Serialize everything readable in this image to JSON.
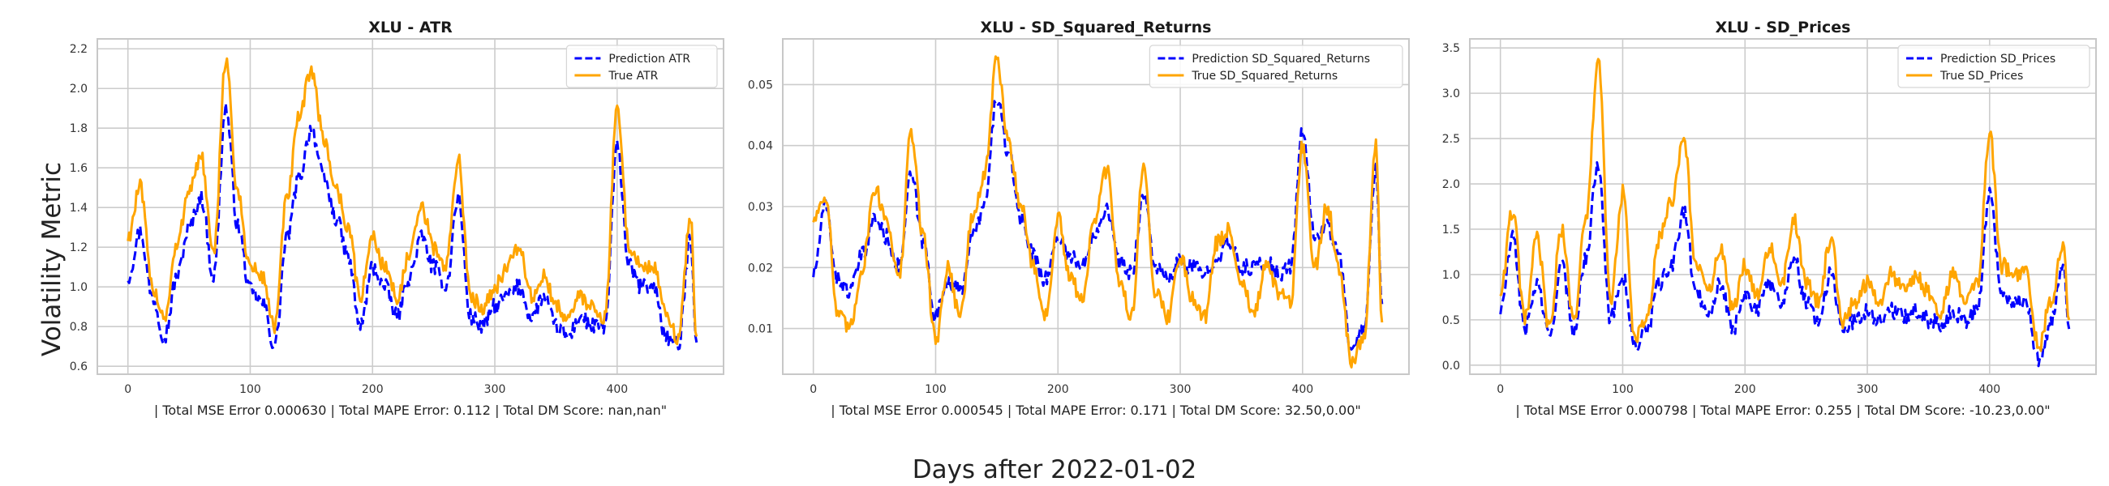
{
  "figure": {
    "ylabel": "Volatility Metric",
    "xlabel": "Days after 2022-01-02"
  },
  "colors": {
    "prediction": "#0000ff",
    "true": "#ffa500",
    "grid": "#cccccc",
    "frame": "#c8c8c8"
  },
  "chart_data": [
    {
      "type": "line",
      "title": "XLU - ATR",
      "error_text": "| Total MSE Error 0.000630 | Total MAPE Error: 0.112 | Total DM Score: nan,nan\"",
      "xlim": [
        -25,
        487
      ],
      "ylim": [
        0.56,
        2.25
      ],
      "xticks": [
        0,
        100,
        200,
        300,
        400
      ],
      "xtick_labels": [
        "0",
        "100",
        "200",
        "300",
        "400"
      ],
      "yticks": [
        0.6,
        0.8,
        1.0,
        1.2,
        1.4,
        1.6,
        1.8,
        2.0,
        2.2
      ],
      "ytick_labels": [
        "0.6",
        "0.8",
        "1.0",
        "1.2",
        "1.4",
        "1.6",
        "1.8",
        "2.0",
        "2.2"
      ],
      "legend_position": "top-right",
      "grid": true,
      "x": [
        0,
        10,
        20,
        30,
        40,
        50,
        60,
        70,
        80,
        90,
        100,
        110,
        120,
        130,
        140,
        150,
        160,
        170,
        180,
        190,
        200,
        210,
        220,
        230,
        240,
        250,
        260,
        270,
        280,
        290,
        300,
        310,
        320,
        330,
        340,
        350,
        360,
        370,
        380,
        390,
        400,
        410,
        420,
        430,
        440,
        450,
        460,
        465
      ],
      "series": [
        {
          "name": "Prediction ATR",
          "style": "dashed",
          "values": [
            1.05,
            1.28,
            0.95,
            0.75,
            1.05,
            1.3,
            1.45,
            1.05,
            1.9,
            1.3,
            0.98,
            0.92,
            0.7,
            1.25,
            1.55,
            1.8,
            1.55,
            1.35,
            1.15,
            0.8,
            1.1,
            1.0,
            0.85,
            1.05,
            1.25,
            1.1,
            1.0,
            1.45,
            0.85,
            0.8,
            0.9,
            0.95,
            1.0,
            0.85,
            0.95,
            0.8,
            0.75,
            0.85,
            0.8,
            0.8,
            1.7,
            1.1,
            1.0,
            1.0,
            0.75,
            0.7,
            1.25,
            0.72
          ]
        },
        {
          "name": "True ATR",
          "style": "solid",
          "values": [
            1.25,
            1.5,
            1.0,
            0.85,
            1.2,
            1.5,
            1.65,
            1.15,
            2.15,
            1.45,
            1.1,
            1.05,
            0.8,
            1.45,
            1.85,
            2.1,
            1.75,
            1.5,
            1.3,
            0.95,
            1.25,
            1.1,
            0.95,
            1.15,
            1.4,
            1.2,
            1.1,
            1.65,
            0.95,
            0.9,
            1.0,
            1.1,
            1.2,
            0.95,
            1.05,
            0.9,
            0.85,
            0.95,
            0.9,
            0.85,
            1.9,
            1.2,
            1.1,
            1.1,
            0.85,
            0.75,
            1.35,
            0.75
          ]
        }
      ]
    },
    {
      "type": "line",
      "title": "XLU - SD_Squared_Returns",
      "error_text": "| Total MSE Error 0.000545 | Total MAPE Error: 0.171 | Total DM Score: 32.50,0.00\"",
      "xlim": [
        -25,
        487
      ],
      "ylim": [
        0.0025,
        0.0575
      ],
      "xticks": [
        0,
        100,
        200,
        300,
        400
      ],
      "xtick_labels": [
        "0",
        "100",
        "200",
        "300",
        "400"
      ],
      "yticks": [
        0.01,
        0.02,
        0.03,
        0.04,
        0.05
      ],
      "ytick_labels": [
        "0.01",
        "0.02",
        "0.03",
        "0.04",
        "0.05"
      ],
      "legend_position": "top-right",
      "grid": true,
      "x": [
        0,
        10,
        20,
        30,
        40,
        50,
        60,
        70,
        80,
        90,
        100,
        110,
        120,
        130,
        140,
        150,
        160,
        170,
        180,
        190,
        200,
        210,
        220,
        230,
        240,
        250,
        260,
        270,
        280,
        290,
        300,
        310,
        320,
        330,
        340,
        350,
        360,
        370,
        380,
        390,
        400,
        410,
        420,
        430,
        440,
        450,
        460,
        465
      ],
      "series": [
        {
          "name": "Prediction SD_Squared_Returns",
          "style": "dashed",
          "values": [
            0.019,
            0.03,
            0.018,
            0.016,
            0.022,
            0.028,
            0.025,
            0.02,
            0.035,
            0.024,
            0.012,
            0.018,
            0.016,
            0.025,
            0.03,
            0.048,
            0.038,
            0.028,
            0.022,
            0.018,
            0.025,
            0.022,
            0.02,
            0.026,
            0.03,
            0.021,
            0.019,
            0.032,
            0.02,
            0.018,
            0.021,
            0.02,
            0.019,
            0.022,
            0.024,
            0.02,
            0.02,
            0.021,
            0.019,
            0.02,
            0.042,
            0.025,
            0.027,
            0.022,
            0.006,
            0.01,
            0.036,
            0.014
          ]
        },
        {
          "name": "True SD_Squared_Returns",
          "style": "solid",
          "values": [
            0.028,
            0.032,
            0.012,
            0.01,
            0.02,
            0.033,
            0.028,
            0.018,
            0.042,
            0.025,
            0.008,
            0.02,
            0.012,
            0.028,
            0.035,
            0.054,
            0.04,
            0.03,
            0.02,
            0.012,
            0.028,
            0.018,
            0.015,
            0.028,
            0.036,
            0.018,
            0.012,
            0.036,
            0.016,
            0.012,
            0.022,
            0.015,
            0.012,
            0.024,
            0.026,
            0.018,
            0.012,
            0.02,
            0.016,
            0.014,
            0.04,
            0.02,
            0.03,
            0.02,
            0.005,
            0.008,
            0.04,
            0.011
          ]
        }
      ]
    },
    {
      "type": "line",
      "title": "XLU - SD_Prices",
      "error_text": "| Total MSE Error 0.000798 | Total MAPE Error: 0.255 | Total DM Score: -10.23,0.00\"",
      "xlim": [
        -25,
        487
      ],
      "ylim": [
        -0.1,
        3.6
      ],
      "xticks": [
        0,
        100,
        200,
        300,
        400
      ],
      "xtick_labels": [
        "0",
        "100",
        "200",
        "300",
        "400"
      ],
      "yticks": [
        0.0,
        0.5,
        1.0,
        1.5,
        2.0,
        2.5,
        3.0,
        3.5
      ],
      "ytick_labels": [
        "0.0",
        "0.5",
        "1.0",
        "1.5",
        "2.0",
        "2.5",
        "3.0",
        "3.5"
      ],
      "legend_position": "top-right",
      "grid": true,
      "x": [
        0,
        10,
        20,
        30,
        40,
        50,
        60,
        70,
        80,
        90,
        100,
        110,
        120,
        130,
        140,
        150,
        160,
        170,
        180,
        190,
        200,
        210,
        220,
        230,
        240,
        250,
        260,
        270,
        280,
        290,
        300,
        310,
        320,
        330,
        340,
        350,
        360,
        370,
        380,
        390,
        400,
        410,
        420,
        430,
        440,
        450,
        460,
        465
      ],
      "series": [
        {
          "name": "Prediction SD_Prices",
          "style": "dashed",
          "values": [
            0.6,
            1.4,
            0.4,
            0.9,
            0.3,
            1.1,
            0.4,
            1.2,
            2.25,
            0.5,
            1.0,
            0.2,
            0.4,
            0.9,
            1.1,
            1.7,
            0.8,
            0.6,
            0.9,
            0.4,
            0.8,
            0.6,
            0.9,
            0.7,
            1.2,
            0.7,
            0.5,
            1.0,
            0.4,
            0.5,
            0.6,
            0.5,
            0.6,
            0.55,
            0.6,
            0.5,
            0.45,
            0.6,
            0.5,
            0.6,
            1.9,
            0.8,
            0.7,
            0.7,
            0.05,
            0.45,
            1.1,
            0.4
          ]
        },
        {
          "name": "True SD_Prices",
          "style": "solid",
          "values": [
            0.8,
            1.7,
            0.5,
            1.4,
            0.4,
            1.5,
            0.5,
            1.6,
            3.4,
            0.7,
            1.9,
            0.3,
            0.5,
            1.4,
            1.8,
            2.5,
            1.1,
            0.8,
            1.3,
            0.6,
            1.1,
            0.8,
            1.3,
            0.9,
            1.6,
            0.9,
            0.7,
            1.4,
            0.5,
            0.7,
            0.9,
            0.7,
            1.0,
            0.8,
            1.0,
            0.8,
            0.6,
            1.0,
            0.7,
            0.9,
            2.55,
            1.1,
            1.0,
            1.0,
            0.2,
            0.7,
            1.35,
            0.5
          ]
        }
      ]
    }
  ]
}
